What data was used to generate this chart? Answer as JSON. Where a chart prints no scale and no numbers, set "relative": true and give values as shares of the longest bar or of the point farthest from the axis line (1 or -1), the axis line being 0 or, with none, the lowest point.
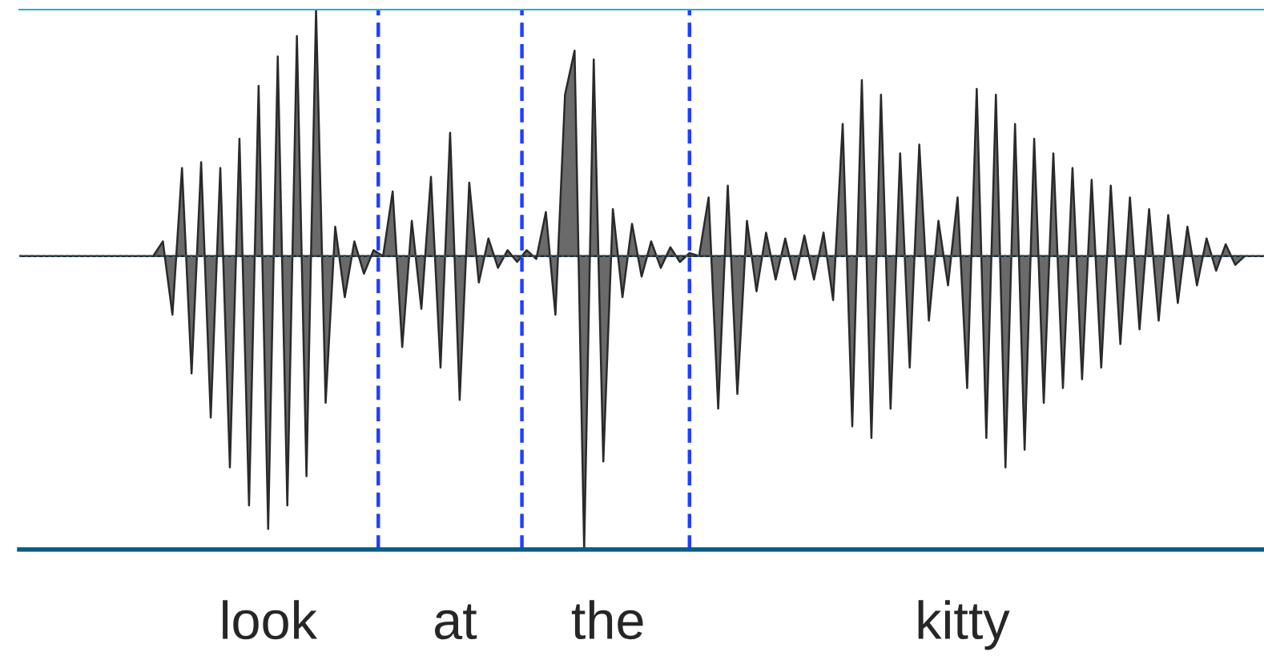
{
  "chart_data": {
    "type": "area",
    "relative": true,
    "categories": [
      null,
      null,
      null,
      null,
      null,
      null,
      null,
      null,
      null,
      null,
      null,
      null,
      null,
      null,
      null,
      null,
      null,
      null,
      null,
      null,
      null,
      null,
      null,
      null,
      null,
      null,
      null,
      null,
      null,
      null,
      null,
      null,
      null,
      null,
      null,
      null,
      null,
      null,
      null,
      null,
      null,
      null,
      null,
      null,
      null,
      null,
      null,
      null,
      null,
      null,
      null,
      null,
      null,
      null,
      null,
      null,
      null,
      null,
      null,
      null,
      null,
      null,
      null,
      null,
      null,
      null,
      null,
      null,
      null,
      null,
      null,
      null,
      null,
      null,
      null,
      null,
      null,
      null,
      null,
      null,
      null,
      null,
      null,
      null,
      null,
      null,
      null,
      null,
      null,
      null,
      null,
      null,
      null,
      null,
      null,
      null,
      null,
      null,
      null,
      null,
      null,
      null,
      null,
      null,
      null,
      null,
      null,
      null,
      null,
      null,
      null,
      null,
      null,
      null,
      null,
      null,
      null,
      null,
      null,
      null,
      null,
      null,
      null,
      null,
      null,
      null,
      null,
      null,
      null,
      null,
      null
    ],
    "series": [
      {
        "color": "#2a2a2a",
        "values": [
          0,
          0,
          0,
          0,
          0,
          0,
          0,
          0,
          0,
          0,
          0,
          0,
          0,
          0,
          0,
          0.05,
          -0.2,
          0.3,
          -0.4,
          0.32,
          -0.55,
          0.3,
          -0.72,
          0.4,
          -0.85,
          0.58,
          -0.93,
          0.68,
          -0.85,
          0.75,
          -0.75,
          0.84,
          -0.5,
          0.1,
          -0.14,
          0.05,
          -0.06,
          0.02,
          0,
          0.22,
          -0.31,
          0.12,
          -0.18,
          0.27,
          -0.38,
          0.42,
          -0.49,
          0.25,
          -0.09,
          0.06,
          -0.04,
          0.02,
          -0.02,
          0.02,
          -0.01,
          0.15,
          -0.2,
          0.55,
          0.7,
          -1.0,
          0.67,
          -0.7,
          0.16,
          -0.14,
          0.11,
          -0.07,
          0.05,
          -0.04,
          0.03,
          -0.02,
          0.01,
          0,
          0.2,
          -0.52,
          0.24,
          -0.47,
          0.12,
          -0.12,
          0.08,
          -0.08,
          0.06,
          -0.08,
          0.07,
          -0.08,
          0.08,
          -0.15,
          0.45,
          -0.58,
          0.6,
          -0.62,
          0.55,
          -0.52,
          0.35,
          -0.38,
          0.38,
          -0.22,
          0.12,
          -0.1,
          0.2,
          -0.45,
          0.57,
          -0.62,
          0.55,
          -0.72,
          0.45,
          -0.66,
          0.4,
          -0.5,
          0.35,
          -0.45,
          0.3,
          -0.42,
          0.26,
          -0.38,
          0.24,
          -0.3,
          0.2,
          -0.25,
          0.16,
          -0.22,
          0.14,
          -0.16,
          0.1,
          -0.1,
          0.06,
          -0.05,
          0.04,
          -0.03,
          0,
          0,
          0
        ]
      }
    ],
    "annotations": [
      "look",
      "at",
      "the",
      "kitty"
    ]
  }
}
